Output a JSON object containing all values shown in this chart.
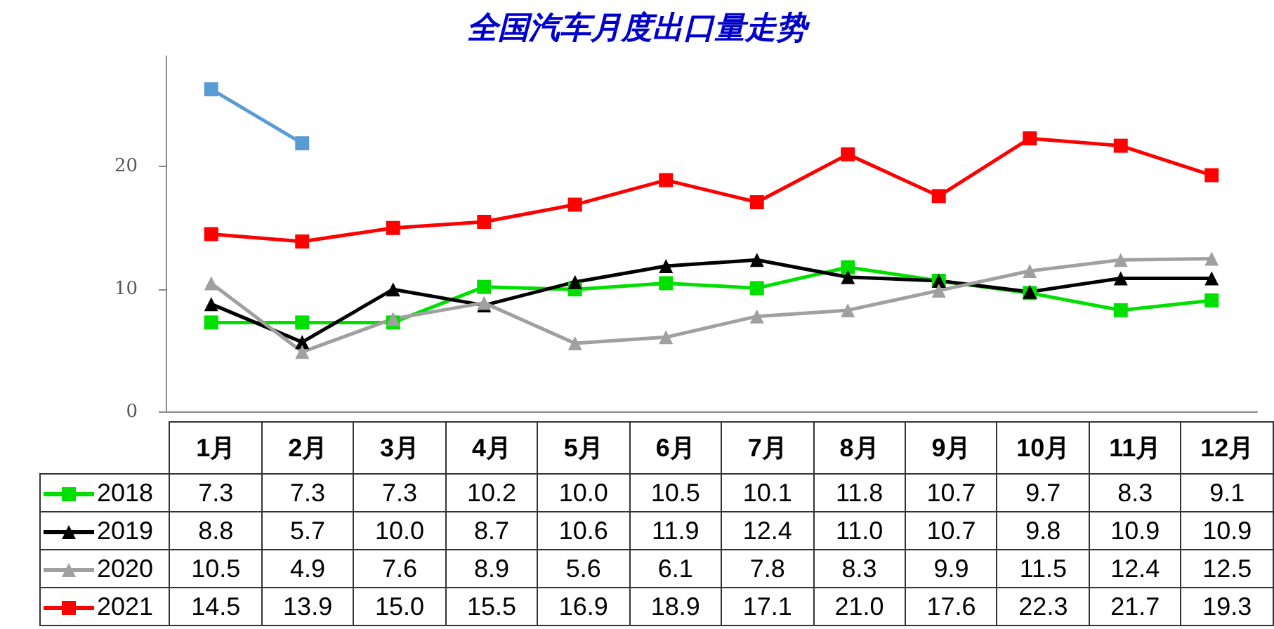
{
  "chart_data": {
    "type": "line",
    "title": "全国汽车月度出口量走势",
    "categories": [
      "1月",
      "2月",
      "3月",
      "4月",
      "5月",
      "6月",
      "7月",
      "8月",
      "9月",
      "10月",
      "11月",
      "12月"
    ],
    "ylim": [
      0,
      29
    ],
    "yticks": [
      0,
      10,
      20
    ],
    "grid": false,
    "legend": "bottom",
    "series": [
      {
        "name": "2018",
        "color": "#00e000",
        "marker": "square",
        "values": [
          7.3,
          7.3,
          7.3,
          10.2,
          10.0,
          10.5,
          10.1,
          11.8,
          10.7,
          9.7,
          8.3,
          9.1
        ],
        "value_labels": [
          "7.3",
          "7.3",
          "7.3",
          "10.2",
          "10.0",
          "10.5",
          "10.1",
          "11.8",
          "10.7",
          "9.7",
          "8.3",
          "9.1"
        ]
      },
      {
        "name": "2019",
        "color": "#000000",
        "marker": "triangle",
        "values": [
          8.8,
          5.7,
          10.0,
          8.7,
          10.6,
          11.9,
          12.4,
          11.0,
          10.7,
          9.8,
          10.9,
          10.9
        ],
        "value_labels": [
          "8.8",
          "5.7",
          "10.0",
          "8.7",
          "10.6",
          "11.9",
          "12.4",
          "11.0",
          "10.7",
          "9.8",
          "10.9",
          "10.9"
        ]
      },
      {
        "name": "2020",
        "color": "#a0a0a0",
        "marker": "triangle",
        "values": [
          10.5,
          4.9,
          7.6,
          8.9,
          5.6,
          6.1,
          7.8,
          8.3,
          9.9,
          11.5,
          12.4,
          12.5
        ],
        "value_labels": [
          "10.5",
          "4.9",
          "7.6",
          "8.9",
          "5.6",
          "6.1",
          "7.8",
          "8.3",
          "9.9",
          "11.5",
          "12.4",
          "12.5"
        ]
      },
      {
        "name": "2021",
        "color": "#ff0000",
        "marker": "square",
        "values": [
          14.5,
          13.9,
          15.0,
          15.5,
          16.9,
          18.9,
          17.1,
          21.0,
          17.6,
          22.3,
          21.7,
          19.3
        ],
        "value_labels": [
          "14.5",
          "13.9",
          "15.0",
          "15.5",
          "16.9",
          "18.9",
          "17.1",
          "21.0",
          "17.6",
          "22.3",
          "21.7",
          "19.3"
        ]
      },
      {
        "color": "#5b9bd5",
        "marker": "square",
        "values": [
          26.3,
          21.9,
          null,
          null,
          null,
          null,
          null,
          null,
          null,
          null,
          null,
          null
        ]
      }
    ]
  }
}
